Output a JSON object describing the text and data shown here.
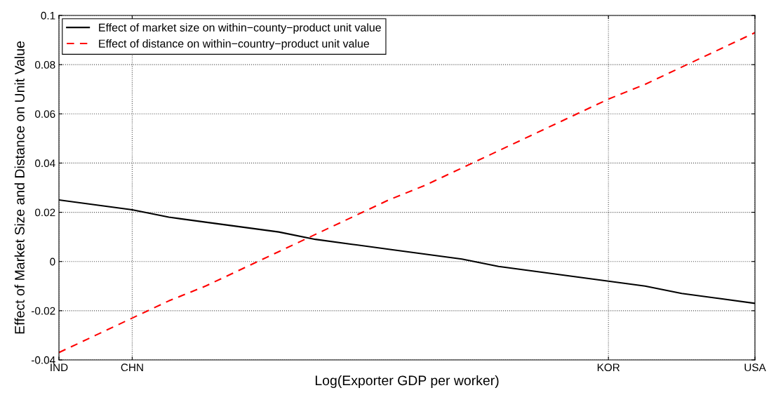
{
  "chart_data": {
    "type": "line",
    "xlabel": "Log(Exporter GDP per worker)",
    "ylabel": "Effect of Market Size and Distance on Unit Value",
    "categories": [
      "IND",
      null,
      "CHN",
      null,
      null,
      null,
      null,
      null,
      null,
      null,
      null,
      null,
      null,
      null,
      null,
      "KOR",
      null,
      null,
      null,
      "USA"
    ],
    "series": [
      {
        "name": "Effect of market size on within−county−product unit value",
        "color": "#000000",
        "line_style": "solid",
        "values": [
          0.025,
          0.023,
          0.021,
          0.018,
          0.016,
          0.014,
          0.012,
          0.009,
          0.007,
          0.005,
          0.003,
          0.001,
          -0.002,
          -0.004,
          -0.006,
          -0.008,
          -0.01,
          -0.013,
          -0.015,
          -0.017
        ]
      },
      {
        "name": "Effect of distance on within−country−product unit value",
        "color": "#ff0000",
        "line_style": "dashed",
        "values": [
          -0.037,
          -0.03,
          -0.023,
          -0.016,
          -0.01,
          -0.003,
          0.004,
          0.011,
          0.018,
          0.025,
          0.031,
          0.038,
          0.045,
          0.052,
          0.059,
          0.066,
          0.072,
          0.079,
          0.086,
          0.093
        ]
      }
    ],
    "ylim": [
      -0.04,
      0.1
    ],
    "yticks": [
      {
        "value": -0.04,
        "label": "-0.04"
      },
      {
        "value": -0.02,
        "label": "-0.02"
      },
      {
        "value": 0,
        "label": "0"
      },
      {
        "value": 0.02,
        "label": "0.02"
      },
      {
        "value": 0.04,
        "label": "0.04"
      },
      {
        "value": 0.06,
        "label": "0.06"
      },
      {
        "value": 0.08,
        "label": "0.08"
      },
      {
        "value": 0.1,
        "label": "0.1"
      }
    ],
    "grid": true,
    "legend": "top left",
    "marker": "none"
  }
}
